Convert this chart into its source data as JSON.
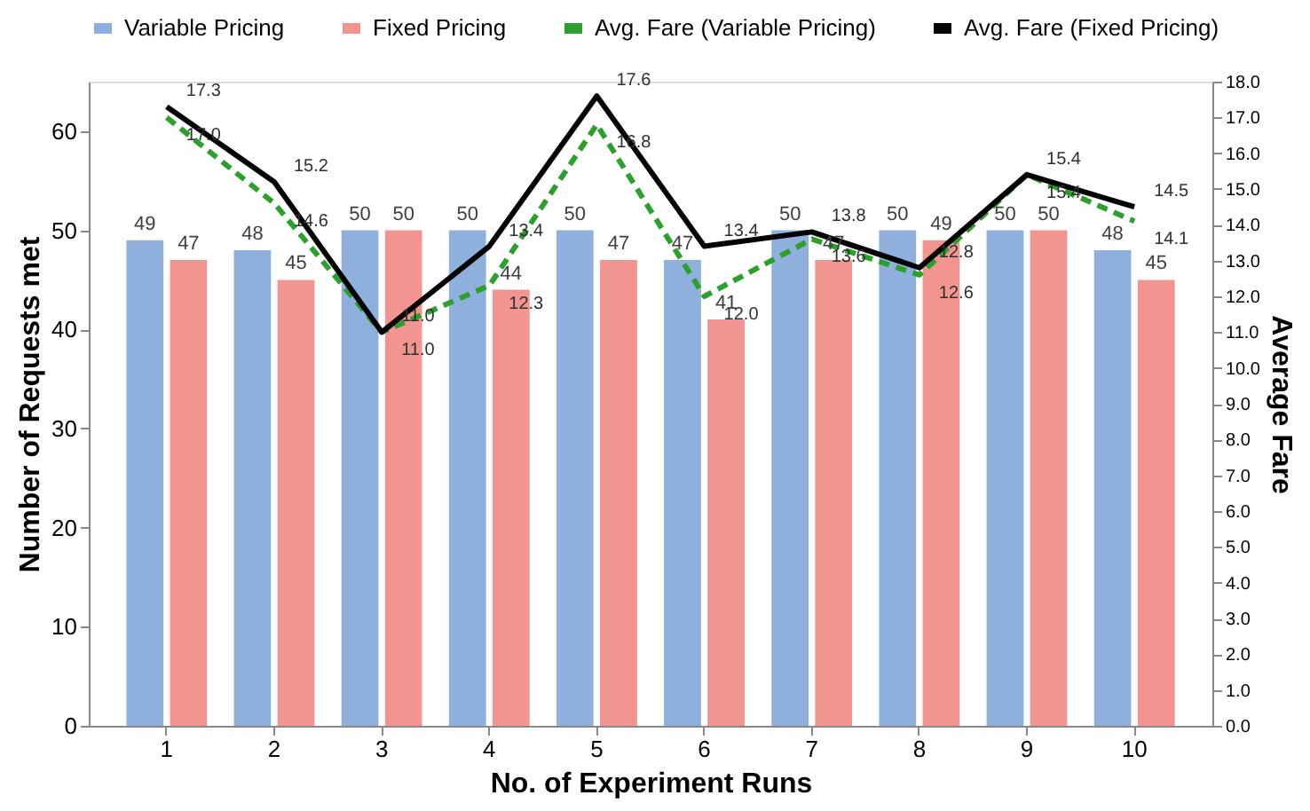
{
  "chart_data": {
    "type": "bar",
    "xlabel": "No. of Experiment Runs",
    "ylabel": "Number of Requests met",
    "y2label": "Average Fare",
    "categories": [
      "1",
      "2",
      "3",
      "4",
      "5",
      "6",
      "7",
      "8",
      "9",
      "10"
    ],
    "series": [
      {
        "name": "Variable Pricing",
        "color": "#8fb0dc",
        "values": [
          49,
          48,
          50,
          50,
          50,
          47,
          50,
          50,
          50,
          48
        ]
      },
      {
        "name": "Fixed Pricing",
        "color": "#f2948f",
        "values": [
          47,
          45,
          50,
          44,
          47,
          41,
          47,
          49,
          50,
          45
        ]
      },
      {
        "name": "Avg. Fare (Variable Pricing)",
        "type": "line",
        "axis": "y2",
        "line_style": "dashed",
        "color": "#2ca02c",
        "values": [
          17.0,
          14.6,
          11.0,
          12.3,
          16.8,
          12.0,
          13.6,
          12.6,
          15.4,
          14.1
        ],
        "value_labels": [
          "17.0",
          "14.6",
          "11.0",
          "12.3",
          "16.8",
          "12.0",
          "13.6",
          "12.6",
          "15.4",
          "14.1"
        ]
      },
      {
        "name": "Avg. Fare (Fixed Pricing)",
        "type": "line",
        "axis": "y2",
        "line_style": "solid",
        "color": "#000000",
        "values": [
          17.3,
          15.2,
          11.0,
          13.4,
          17.6,
          13.4,
          13.8,
          12.8,
          15.4,
          14.5
        ],
        "value_labels": [
          "17.3",
          "15.2",
          "11.0",
          "13.4",
          "17.6",
          "13.4",
          "13.8",
          "12.8",
          "15.4",
          "14.5"
        ]
      }
    ],
    "ylim": [
      0,
      65
    ],
    "yticks": [
      0,
      10,
      20,
      30,
      40,
      50,
      60
    ],
    "y2lim": [
      0,
      18
    ],
    "y2ticks": [
      {
        "value": 0,
        "label": "0.0"
      },
      {
        "value": 1,
        "label": "1.0"
      },
      {
        "value": 2,
        "label": "2.0"
      },
      {
        "value": 3,
        "label": "3.0"
      },
      {
        "value": 4,
        "label": "4.0"
      },
      {
        "value": 5,
        "label": "5.0"
      },
      {
        "value": 6,
        "label": "6.0"
      },
      {
        "value": 7,
        "label": "7.0"
      },
      {
        "value": 8,
        "label": "8.0"
      },
      {
        "value": 9,
        "label": "9.0"
      },
      {
        "value": 10,
        "label": "10.0"
      },
      {
        "value": 11,
        "label": "11.0"
      },
      {
        "value": 12,
        "label": "12.0"
      },
      {
        "value": 13,
        "label": "13.0"
      },
      {
        "value": 14,
        "label": "14.0"
      },
      {
        "value": 15,
        "label": "15.0"
      },
      {
        "value": 16,
        "label": "16.0"
      },
      {
        "value": 17,
        "label": "17.0"
      },
      {
        "value": 18,
        "label": "18.0"
      }
    ],
    "data_labels": true,
    "legend": "top",
    "grid": false
  }
}
